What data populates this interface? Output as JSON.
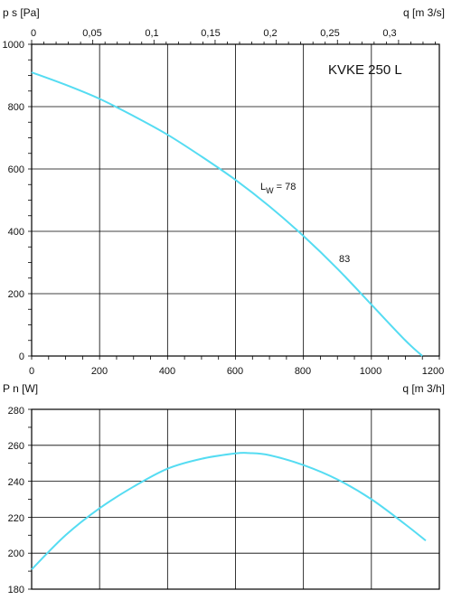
{
  "chart_data": [
    {
      "type": "line",
      "title": "KVKE 250 L",
      "ylabel": "p s [Pa]",
      "xlabel": "q [m 3/h]",
      "x_top_label": "q [m 3/s]",
      "ylim": [
        0,
        1000
      ],
      "xlim": [
        0,
        1200
      ],
      "x_top_lim_m3s": [
        0,
        0.3333
      ],
      "grid": true,
      "yticks": [
        "0",
        "200",
        "400",
        "600",
        "800",
        "1000"
      ],
      "xticks": [
        "0",
        "200",
        "400",
        "600",
        "800",
        "1000",
        "1200"
      ],
      "xticks_top": [
        "0",
        "0,05",
        "0,1",
        "0,15",
        "0,2",
        "0,25",
        "0,3"
      ],
      "series": [
        {
          "color": "#55dcf2",
          "x": [
            0,
            100,
            200,
            300,
            400,
            500,
            600,
            700,
            800,
            900,
            1000,
            1100,
            1150
          ],
          "values": [
            910,
            870,
            825,
            770,
            710,
            640,
            565,
            480,
            385,
            280,
            165,
            50,
            0
          ]
        }
      ],
      "annotations": [
        {
          "text_main": "L",
          "text_sub": "W",
          "text_rest": " = 78",
          "x": 660,
          "y": 555
        },
        {
          "text_main": "83",
          "x": 910,
          "y": 315
        }
      ]
    },
    {
      "type": "line",
      "ylabel": "P n [W]",
      "ylim": [
        180,
        280
      ],
      "xlim": [
        0,
        1200
      ],
      "grid": true,
      "yticks": [
        "180",
        "200",
        "220",
        "240",
        "260",
        "280"
      ],
      "series": [
        {
          "color": "#55dcf2",
          "x": [
            0,
            100,
            200,
            300,
            400,
            500,
            600,
            640,
            700,
            800,
            900,
            1000,
            1100,
            1160
          ],
          "values": [
            191,
            210,
            225,
            237,
            247,
            252.5,
            255.5,
            255.7,
            254.5,
            249,
            241,
            230,
            216,
            207
          ]
        }
      ]
    }
  ]
}
